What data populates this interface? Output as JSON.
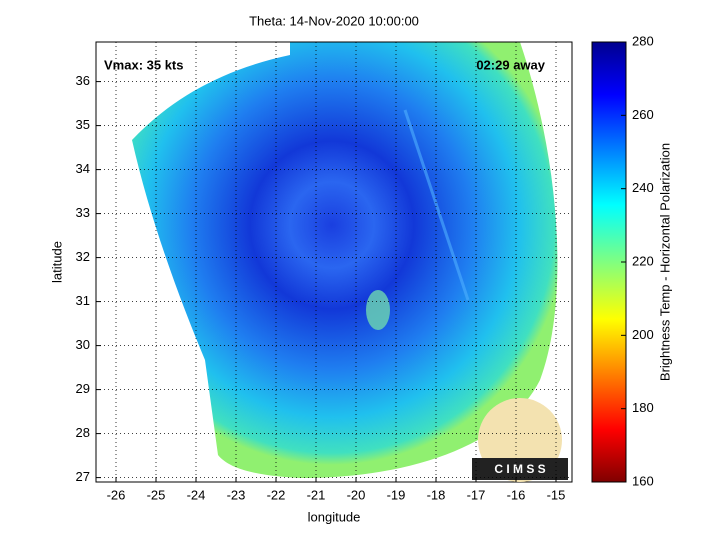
{
  "title": "Theta: 14-Nov-2020 10:00:00",
  "annotations": {
    "vmax": "Vmax: 35 kts",
    "time_away": "02:29 away"
  },
  "x_axis": {
    "label": "longitude",
    "lim": [
      -26.5,
      -14.6
    ],
    "ticks": [
      -26,
      -25,
      -24,
      -23,
      -22,
      -21,
      -20,
      -19,
      -18,
      -17,
      -16,
      -15
    ]
  },
  "y_axis": {
    "label": "latitude",
    "lim": [
      26.9,
      36.9
    ],
    "ticks": [
      27,
      28,
      29,
      30,
      31,
      32,
      33,
      34,
      35,
      36
    ]
  },
  "colorbar": {
    "label": "Brightness Temp - Horizontal Polarization",
    "lim": [
      160,
      280
    ],
    "ticks": [
      160,
      180,
      200,
      220,
      240,
      260,
      280
    ]
  },
  "logo": "C I M S S"
}
